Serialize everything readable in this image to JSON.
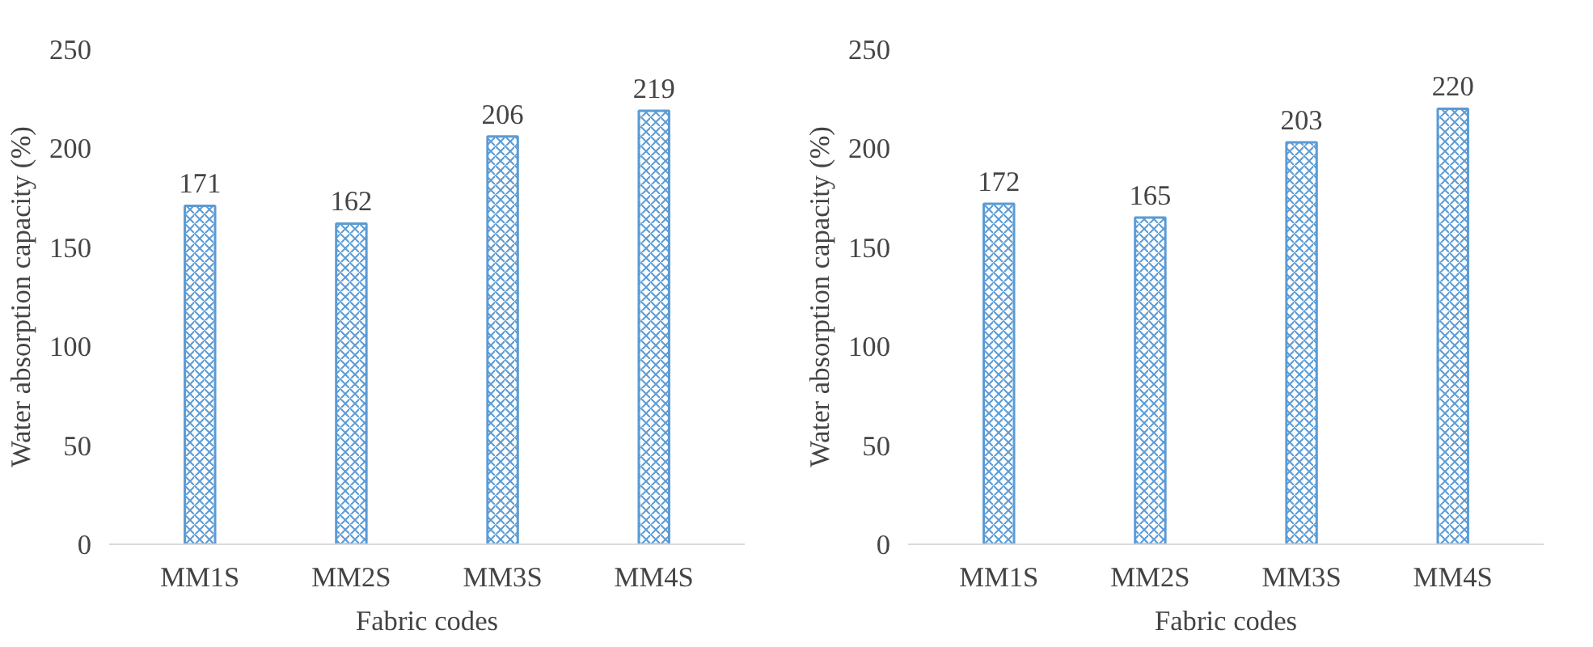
{
  "chart_data": [
    {
      "type": "bar",
      "xlabel": "Fabric codes",
      "ylabel": "Water absorption capacity (%)",
      "categories": [
        "MM1S",
        "MM2S",
        "MM3S",
        "MM4S"
      ],
      "values": [
        171,
        162,
        206,
        219
      ],
      "color": "#5b9bd5",
      "ylim": [
        0,
        250
      ],
      "yticks": [
        0,
        50,
        100,
        150,
        200,
        250
      ],
      "data_labels": true,
      "grid": false
    },
    {
      "type": "bar",
      "xlabel": "Fabric codes",
      "ylabel": "Water absorption capacity (%)",
      "categories": [
        "MM1S",
        "MM2S",
        "MM3S",
        "MM4S"
      ],
      "values": [
        172,
        165,
        203,
        220
      ],
      "color": "#5b9bd5",
      "ylim": [
        0,
        250
      ],
      "yticks": [
        0,
        50,
        100,
        150,
        200,
        250
      ],
      "data_labels": true,
      "grid": false
    }
  ]
}
